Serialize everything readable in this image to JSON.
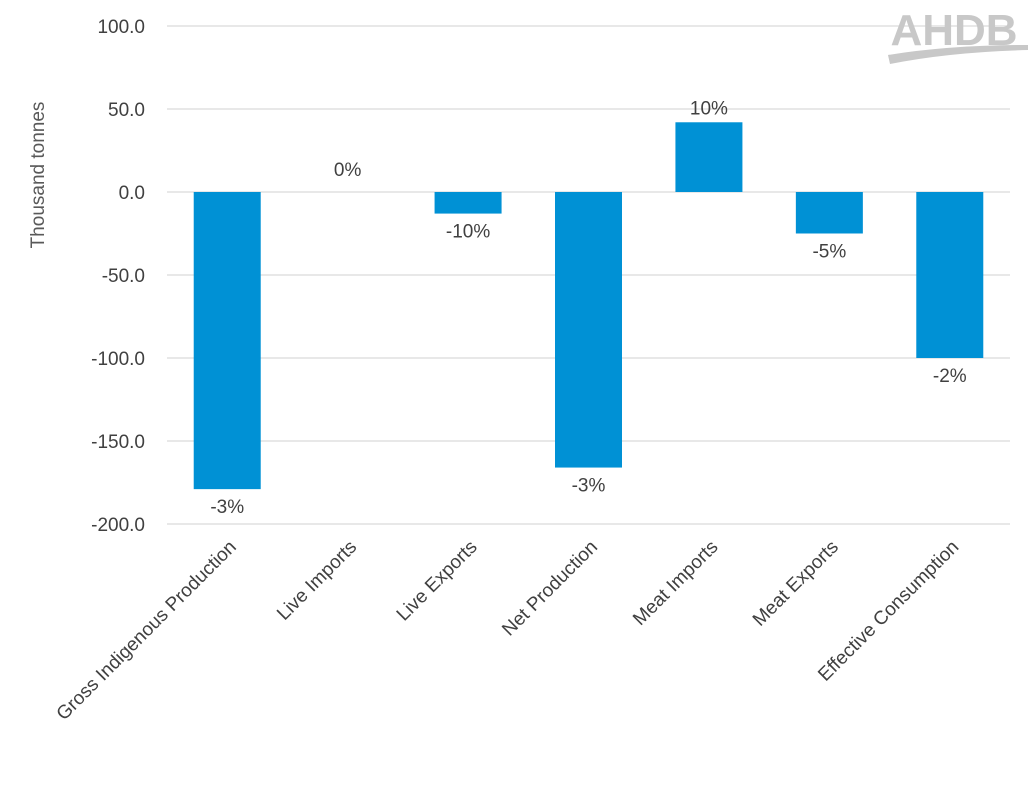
{
  "chart_data": {
    "type": "bar",
    "ylabel": "Thousand tonnes",
    "ylim": [
      -200,
      100
    ],
    "yticks": [
      100,
      50,
      0,
      -50,
      -100,
      -150,
      -200
    ],
    "ytick_labels": [
      "100.0",
      "50.0",
      "0.0",
      "-50.0",
      "-100.0",
      "-150.0",
      "-200.0"
    ],
    "categories": [
      "Gross Indigenous Production",
      "Live Imports",
      "Live Exports",
      "Net Production",
      "Meat Imports",
      "Meat Exports",
      "Effective Consumption"
    ],
    "values": [
      -179,
      0,
      -13,
      -166,
      42,
      -25,
      -100
    ],
    "data_labels": [
      "-3%",
      "0%",
      "-10%",
      "-3%",
      "10%",
      "-5%",
      "-2%"
    ],
    "bar_color": "#0091d5",
    "grid": true,
    "legend": "none"
  },
  "logo": {
    "text": "AHDB"
  }
}
